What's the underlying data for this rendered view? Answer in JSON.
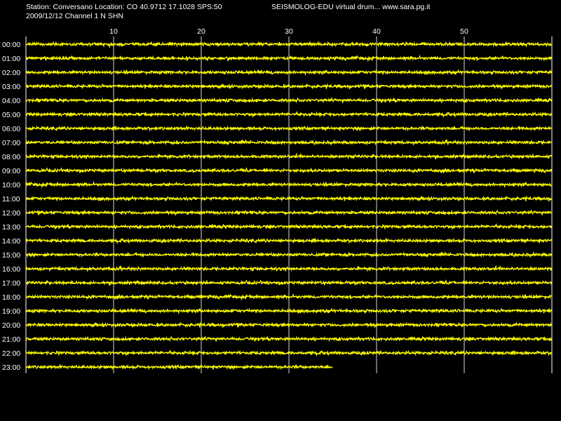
{
  "header": {
    "station_line": "Station: Conversano Location: CO 40.9712 17.1028 SPS:50",
    "date_line": "2009/12/12  Channel 1 N SHN",
    "app_line": "SEISMOLOG-EDU virtual drum... www.sara.pg.it"
  },
  "chart_data": {
    "type": "line",
    "title": "",
    "xlabel": "",
    "ylabel": "",
    "x_unit_range": [
      0,
      60
    ],
    "x_ticks": [
      10,
      20,
      30,
      40,
      50
    ],
    "rows": [
      "00:00",
      "01:00",
      "02:00",
      "03:00",
      "04:00",
      "05:00",
      "06:00",
      "07:00",
      "08:00",
      "09:00",
      "10:00",
      "11:00",
      "12:00",
      "13:00",
      "14:00",
      "15:00",
      "16:00",
      "17:00",
      "18:00",
      "19:00",
      "20:00",
      "21:00",
      "22:00",
      "23:00"
    ],
    "row_end_minutes": [
      60,
      60,
      60,
      60,
      60,
      60,
      60,
      60,
      60,
      60,
      60,
      60,
      60,
      60,
      60,
      60,
      60,
      60,
      60,
      60,
      60,
      60,
      60,
      35
    ],
    "grid": true,
    "colors": {
      "background": "#000000",
      "trace": "#ffff00",
      "grid": "#ffffff",
      "text": "#ffffff"
    }
  }
}
